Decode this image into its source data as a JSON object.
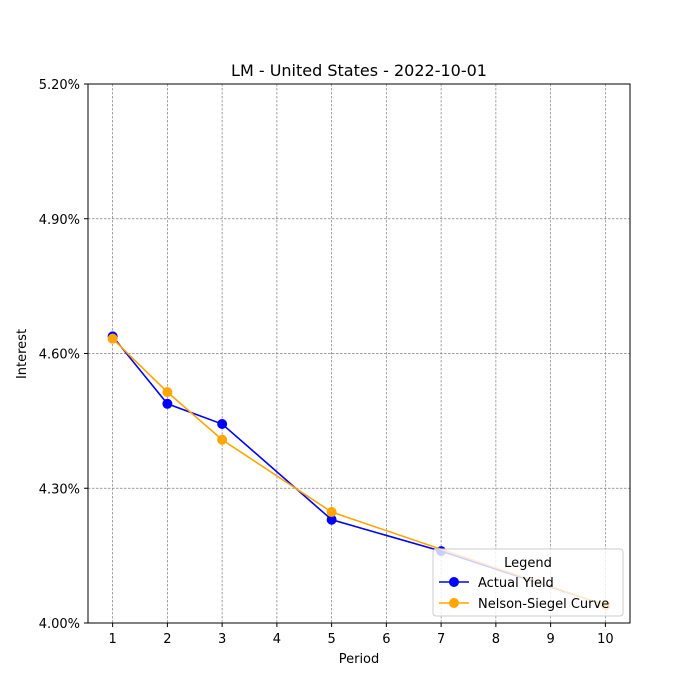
{
  "chart_data": {
    "type": "line",
    "title": "LM - United States - 2022-10-01",
    "xlabel": "Period",
    "ylabel": "Interest",
    "xlim": [
      0.55,
      10.45
    ],
    "ylim": [
      4.0,
      5.2
    ],
    "x_ticks": [
      1,
      2,
      3,
      4,
      5,
      6,
      7,
      8,
      9,
      10
    ],
    "y_ticks": [
      4.0,
      4.3,
      4.6,
      4.9,
      5.2
    ],
    "y_tick_labels": [
      "4.00%",
      "4.30%",
      "4.60%",
      "4.90%",
      "5.20%"
    ],
    "grid": true,
    "legend": {
      "title": "Legend",
      "position": "lower-right"
    },
    "series": [
      {
        "name": "Actual Yield",
        "color": "#0000ff",
        "marker": "circle",
        "x": [
          1,
          2,
          3,
          5,
          7,
          10
        ],
        "y": [
          4.638,
          4.488,
          4.443,
          4.23,
          4.16,
          4.04
        ]
      },
      {
        "name": "Nelson-Siegel Curve",
        "color": "#ffa500",
        "marker": "circle",
        "x": [
          1,
          2,
          3,
          5,
          10
        ],
        "y": [
          4.633,
          4.514,
          4.408,
          4.247,
          4.04
        ]
      }
    ]
  }
}
